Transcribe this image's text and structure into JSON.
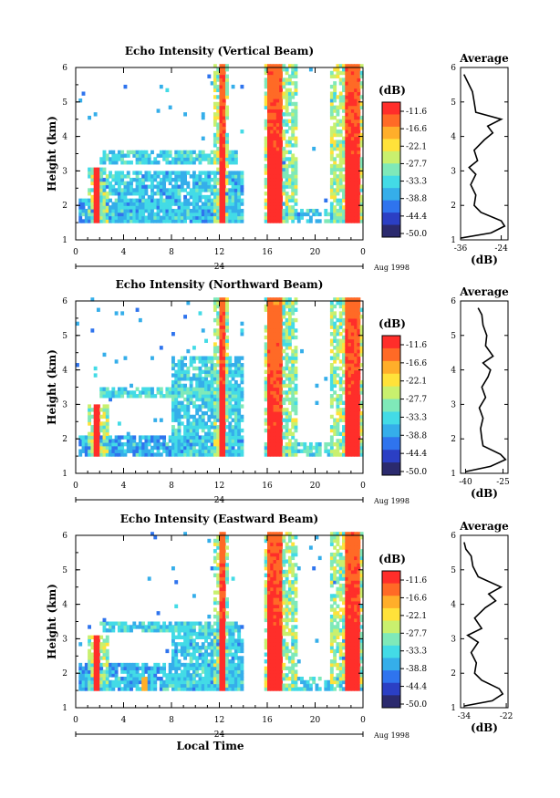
{
  "figure": {
    "date_label": "Aug 1998",
    "xlabel_bottom": "Local Time",
    "day_label": "24"
  },
  "colorbar": {
    "unit": "(dB)",
    "ticks": [
      "-11.6",
      "-16.6",
      "-22.1",
      "-27.7",
      "-33.3",
      "-38.8",
      "-44.4",
      "-50.0"
    ],
    "colors": [
      "#2b2a6e",
      "#2b3fc4",
      "#2f74ee",
      "#35aeea",
      "#43dbe6",
      "#7fe9b9",
      "#c9f06e",
      "#ffe23a",
      "#ffae2a",
      "#ff6a26",
      "#ff2e2a"
    ]
  },
  "chart_data": [
    {
      "type": "heatmap",
      "title": "Echo Intensity (Vertical Beam)",
      "ylabel": "Height (km)",
      "xlim": [
        0,
        24
      ],
      "ylim": [
        1,
        6
      ],
      "xticks": [
        "0",
        "4",
        "8",
        "12",
        "16",
        "20",
        "0"
      ],
      "yticks": [
        "1",
        "2",
        "3",
        "4",
        "5",
        "6"
      ],
      "clim": [
        -50.0,
        -11.6
      ],
      "layer_base_km": 1.5,
      "cloud_layers": [
        {
          "t0": 0.2,
          "t1": 14.0,
          "h_top": 2.2,
          "level": -38
        },
        {
          "t0": 2.0,
          "t1": 13.5,
          "h_bottom": 3.2,
          "h_top": 3.6,
          "level": -34
        },
        {
          "t0": 1.5,
          "t1": 14.0,
          "h_top": 3.0,
          "level": -36
        }
      ],
      "convective_cores": [
        {
          "t_start": 1.4,
          "t_end": 2.0,
          "h_top": 3.1,
          "value": -12
        },
        {
          "t_start": 11.8,
          "t_end": 12.3,
          "h_top": 6.0,
          "value": -12
        },
        {
          "t_start": 15.8,
          "t_end": 17.2,
          "h_top": 6.0,
          "value": -12
        },
        {
          "t_start": 22.3,
          "t_end": 23.7,
          "h_top": 6.0,
          "value": -12
        }
      ],
      "avg_profile": {
        "title": "Average",
        "xlabel": "(dB)",
        "xlim": [
          -36,
          -22
        ],
        "xticks": [
          "-36",
          "-24"
        ],
        "heights": [
          1.05,
          1.2,
          1.4,
          1.55,
          1.8,
          2.0,
          2.3,
          2.6,
          2.9,
          3.1,
          3.3,
          3.6,
          3.9,
          4.1,
          4.3,
          4.5,
          4.7,
          5.0,
          5.3,
          5.6,
          5.8
        ],
        "values": [
          -36,
          -27,
          -23,
          -24,
          -30,
          -32,
          -31.5,
          -33,
          -31.5,
          -33.5,
          -31,
          -32,
          -29,
          -26.5,
          -28,
          -24,
          -31.5,
          -32,
          -32.5,
          -34,
          -35
        ]
      }
    },
    {
      "type": "heatmap",
      "title": "Echo Intensity (Northward Beam)",
      "ylabel": "Height (km)",
      "xlim": [
        0,
        24
      ],
      "ylim": [
        1,
        6
      ],
      "xticks": [
        "0",
        "4",
        "8",
        "12",
        "16",
        "20",
        "0"
      ],
      "yticks": [
        "1",
        "2",
        "3",
        "4",
        "5",
        "6"
      ],
      "clim": [
        -50.0,
        -11.6
      ],
      "layer_base_km": 1.5,
      "cloud_layers": [
        {
          "t0": 0.2,
          "t1": 14.0,
          "h_top": 2.1,
          "level": -38
        },
        {
          "t0": 2.0,
          "t1": 14.0,
          "h_bottom": 3.2,
          "h_top": 3.5,
          "level": -34
        },
        {
          "t0": 8.0,
          "t1": 14.0,
          "h_top": 4.4,
          "level": -35
        }
      ],
      "convective_cores": [
        {
          "t_start": 1.4,
          "t_end": 2.0,
          "h_top": 3.0,
          "value": -12
        },
        {
          "t_start": 11.8,
          "t_end": 12.3,
          "h_top": 6.0,
          "value": -12
        },
        {
          "t_start": 15.8,
          "t_end": 17.2,
          "h_top": 6.0,
          "value": -13
        },
        {
          "t_start": 22.3,
          "t_end": 23.7,
          "h_top": 6.0,
          "value": -12
        }
      ],
      "avg_profile": {
        "title": "Average",
        "xlabel": "(dB)",
        "xlim": [
          -42,
          -23
        ],
        "xticks": [
          "-40",
          "-25"
        ],
        "heights": [
          1.05,
          1.2,
          1.4,
          1.55,
          1.8,
          2.0,
          2.3,
          2.6,
          2.9,
          3.2,
          3.5,
          3.8,
          4.0,
          4.2,
          4.4,
          4.7,
          5.0,
          5.3,
          5.6,
          5.8
        ],
        "values": [
          -40,
          -30,
          -24,
          -26,
          -33,
          -33.5,
          -34,
          -33,
          -34.5,
          -32,
          -33.5,
          -31,
          -30,
          -33,
          -29,
          -32,
          -31.5,
          -33,
          -33.5,
          -35
        ]
      }
    },
    {
      "type": "heatmap",
      "title": "Echo Intensity (Eastward Beam)",
      "ylabel": "Height (km)",
      "xlabel": "Local Time",
      "xlim": [
        0,
        24
      ],
      "ylim": [
        1,
        6
      ],
      "xticks": [
        "0",
        "4",
        "8",
        "12",
        "16",
        "20",
        "0"
      ],
      "yticks": [
        "1",
        "2",
        "3",
        "4",
        "5",
        "6"
      ],
      "clim": [
        -50.0,
        -11.6
      ],
      "layer_base_km": 1.5,
      "cloud_layers": [
        {
          "t0": 0.2,
          "t1": 14.0,
          "h_top": 2.3,
          "level": -37
        },
        {
          "t0": 2.0,
          "t1": 13.5,
          "h_bottom": 3.2,
          "h_top": 3.5,
          "level": -34
        },
        {
          "t0": 8.0,
          "t1": 14.0,
          "h_top": 3.4,
          "level": -36
        }
      ],
      "convective_cores": [
        {
          "t_start": 1.4,
          "t_end": 2.0,
          "h_top": 3.1,
          "value": -12
        },
        {
          "t_start": 5.3,
          "t_end": 5.8,
          "h_top": 1.9,
          "value": -20
        },
        {
          "t_start": 11.8,
          "t_end": 12.3,
          "h_top": 6.0,
          "value": -12
        },
        {
          "t_start": 15.8,
          "t_end": 17.2,
          "h_top": 6.0,
          "value": -12
        },
        {
          "t_start": 22.3,
          "t_end": 23.7,
          "h_top": 6.0,
          "value": -12
        }
      ],
      "avg_profile": {
        "title": "Average",
        "xlabel": "(dB)",
        "xlim": [
          -35,
          -21.5
        ],
        "xticks": [
          "-34",
          "-22"
        ],
        "heights": [
          1.05,
          1.2,
          1.4,
          1.55,
          1.8,
          2.0,
          2.3,
          2.6,
          2.9,
          3.1,
          3.3,
          3.6,
          3.9,
          4.1,
          4.3,
          4.5,
          4.8,
          5.1,
          5.4,
          5.6,
          5.8
        ],
        "values": [
          -34,
          -26,
          -23,
          -24,
          -29,
          -31,
          -30.5,
          -32,
          -30,
          -33,
          -29,
          -31,
          -28,
          -25,
          -27,
          -23.5,
          -30,
          -31.5,
          -32,
          -33.5,
          -34
        ]
      }
    }
  ]
}
